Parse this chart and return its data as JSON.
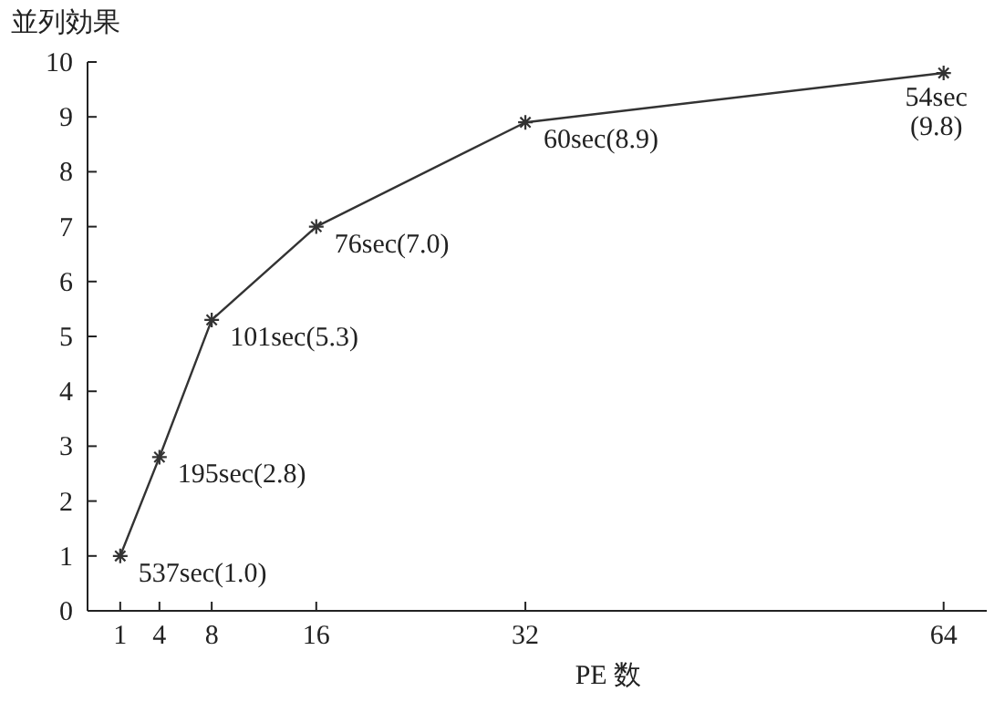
{
  "chart_data": {
    "type": "line",
    "xlabel": "PE 数",
    "ylabel": "並列効果",
    "x": [
      1,
      4,
      8,
      16,
      32,
      64
    ],
    "values": [
      1.0,
      2.8,
      5.3,
      7.0,
      8.9,
      9.8
    ],
    "color": "#333333",
    "marker": "cross",
    "line_style": "solid",
    "grid": false,
    "xlim": [
      -1.5,
      67.3
    ],
    "xticks": [
      1,
      4,
      8,
      16,
      32,
      64
    ],
    "ylim": [
      0,
      10
    ],
    "yticks": [
      0,
      1,
      2,
      3,
      4,
      5,
      6,
      7,
      8,
      9,
      10
    ],
    "annotations": [
      {
        "text": "537sec(1.0)",
        "x": 1,
        "y": 1.0
      },
      {
        "text": "195sec(2.8)",
        "x": 4,
        "y": 2.8
      },
      {
        "text": "101sec(5.3)",
        "x": 8,
        "y": 5.3
      },
      {
        "text": "76sec(7.0)",
        "x": 16,
        "y": 7.0
      },
      {
        "text": "60sec(8.9)",
        "x": 32,
        "y": 8.9
      },
      {
        "text": "54sec(9.8)",
        "x": 64,
        "y": 9.8
      }
    ]
  }
}
